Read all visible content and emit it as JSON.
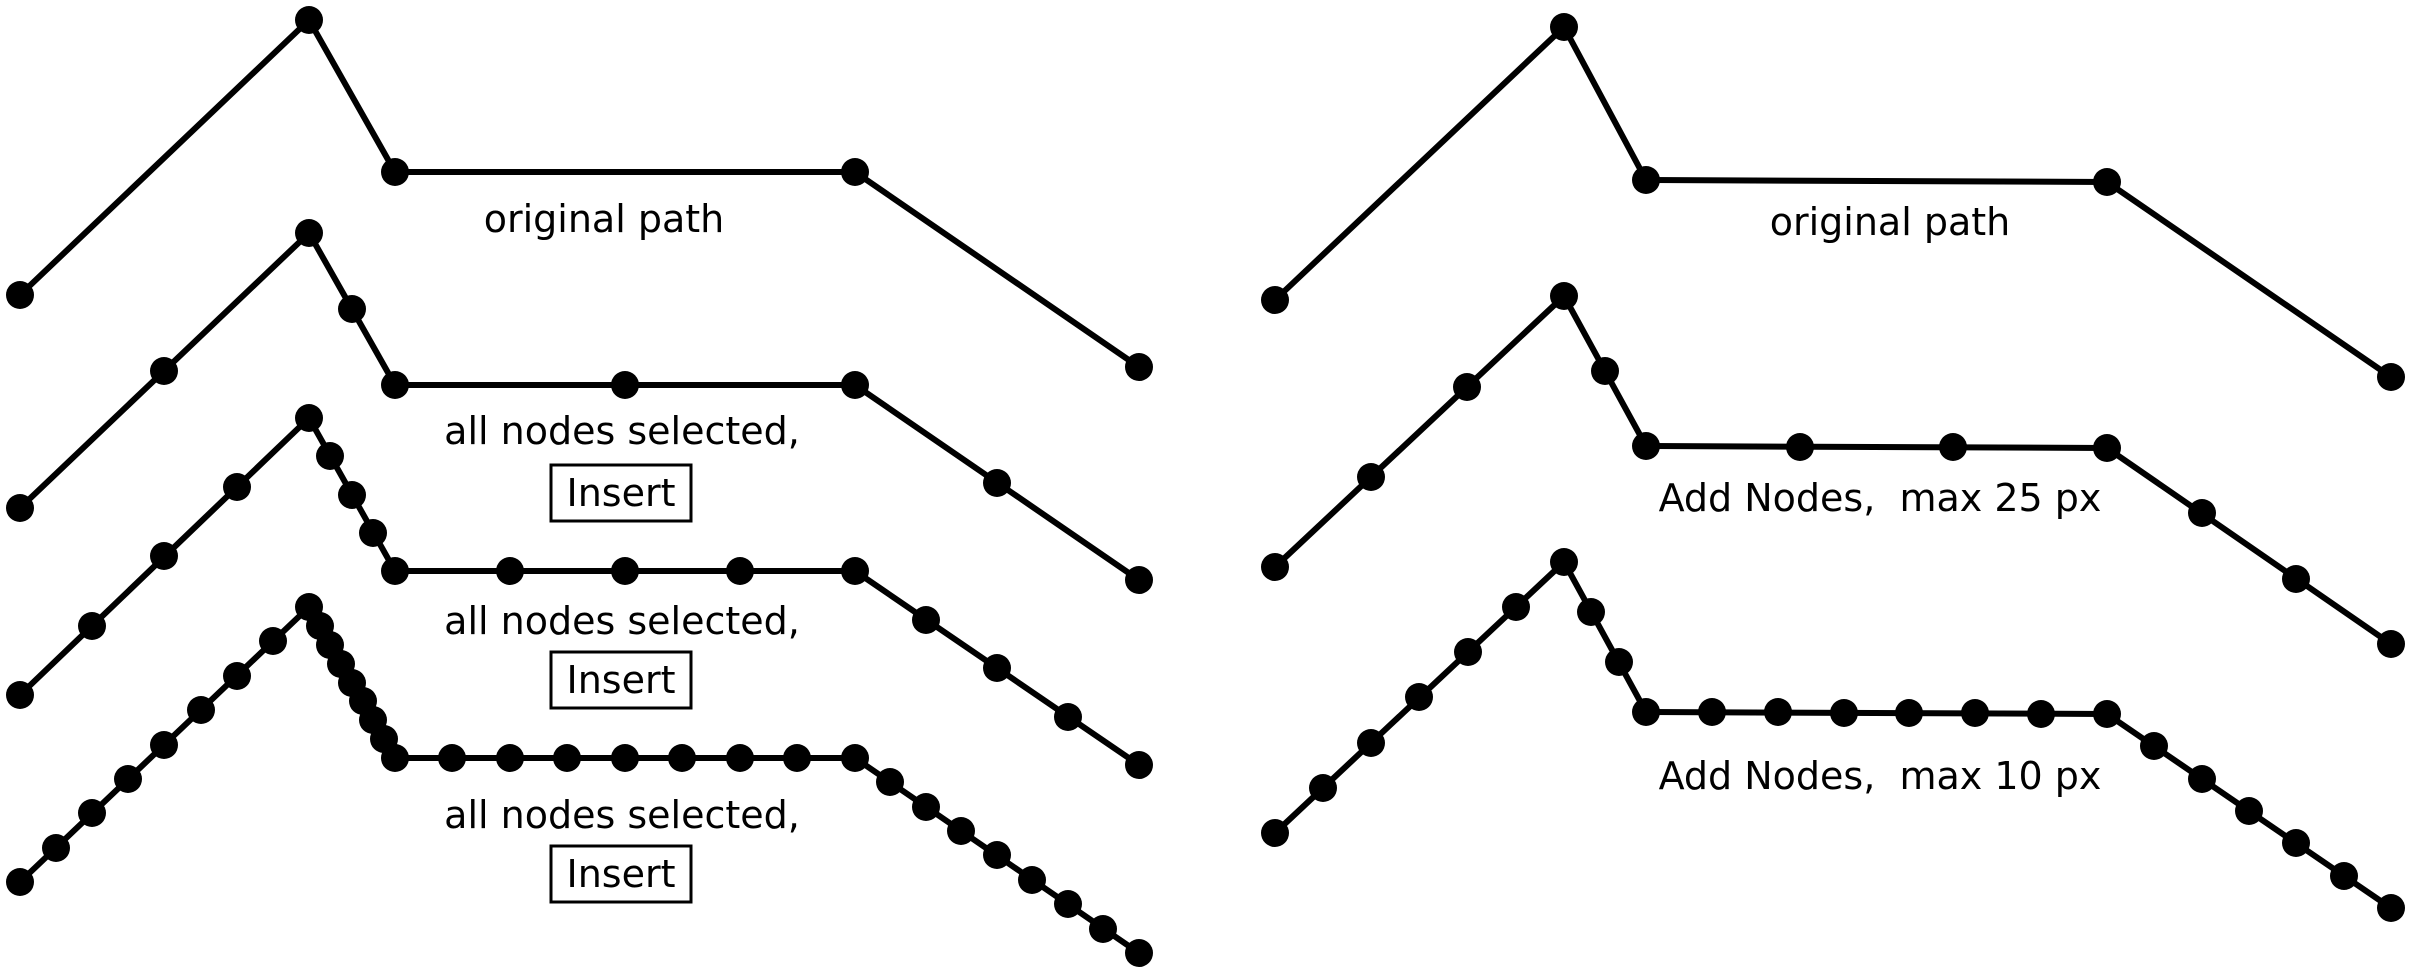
{
  "left_panel": {
    "original_label": "original path",
    "insert_steps": [
      {
        "caption": "all nodes selected,",
        "button": "Insert"
      },
      {
        "caption": "all nodes selected,",
        "button": "Insert"
      },
      {
        "caption": "all nodes selected,",
        "button": "Insert"
      }
    ]
  },
  "right_panel": {
    "original_label": "original path",
    "add_nodes_steps": [
      {
        "caption": "Add Nodes,  max 25 px"
      },
      {
        "caption": "Add Nodes,  max 10 px"
      }
    ]
  }
}
